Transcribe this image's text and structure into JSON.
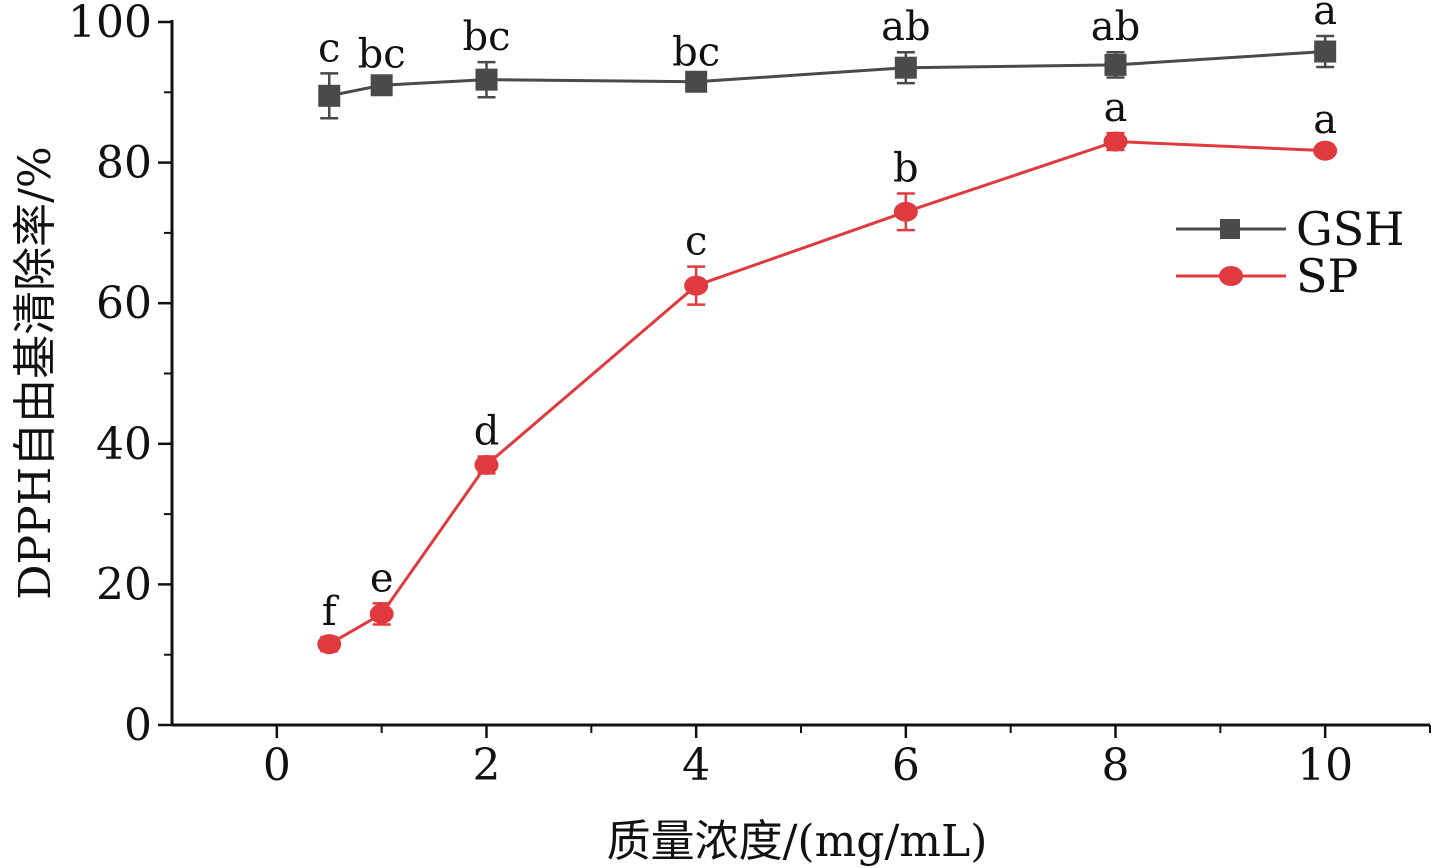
{
  "chart_data": {
    "type": "line",
    "title": "",
    "xlabel": "质量浓度/(mg/mL)",
    "ylabel": "DPPH自由基清除率/%",
    "xlim": [
      -1,
      11
    ],
    "ylim": [
      0,
      100
    ],
    "x_ticks": [
      "0",
      "2",
      "4",
      "6",
      "8",
      "10"
    ],
    "y_ticks": [
      "0",
      "20",
      "40",
      "60",
      "80",
      "100"
    ],
    "grid": false,
    "legend_position": "right",
    "series": [
      {
        "name": "GSH",
        "color": "#4a4a4a",
        "marker": "square",
        "x": [
          0.5,
          1,
          2,
          4,
          6,
          8,
          10
        ],
        "y": [
          89.5,
          91,
          91.8,
          91.5,
          93.5,
          93.9,
          95.8
        ],
        "error": [
          3.2,
          0.8,
          2.5,
          0.6,
          2.2,
          1.8,
          2.2
        ],
        "labels": [
          "c",
          "bc",
          "bc",
          "bc",
          "ab",
          "ab",
          "a"
        ]
      },
      {
        "name": "SP",
        "color": "#e03a3e",
        "marker": "circle",
        "x": [
          0.5,
          1,
          2,
          4,
          6,
          8,
          10
        ],
        "y": [
          11.5,
          15.8,
          37,
          62.5,
          73,
          83,
          81.7
        ],
        "error": [
          1.0,
          1.5,
          1.2,
          2.7,
          2.6,
          1.2,
          0.8
        ],
        "labels": [
          "f",
          "e",
          "d",
          "c",
          "b",
          "a",
          "a"
        ]
      }
    ]
  }
}
